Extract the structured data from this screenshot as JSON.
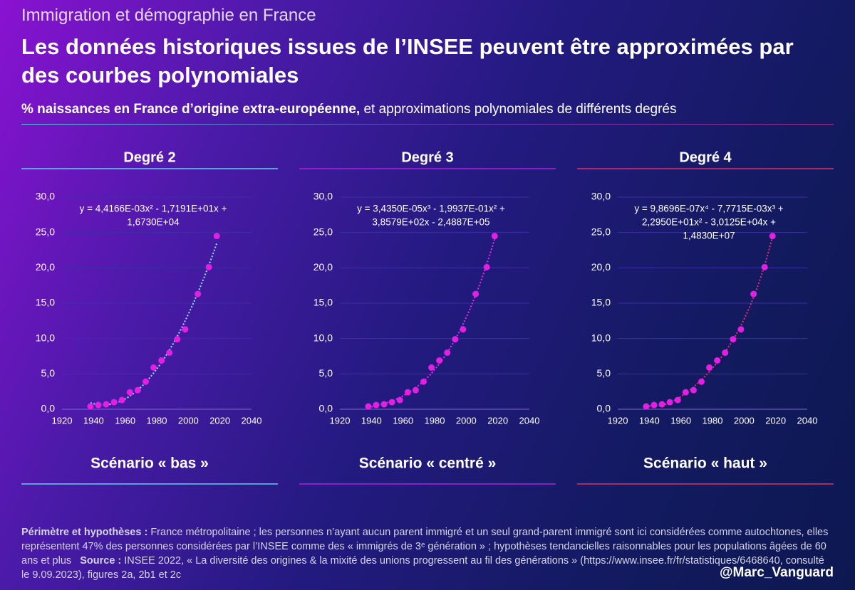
{
  "header": {
    "kicker": "Immigration et démographie en France",
    "title": "Les données historiques issues de l’INSEE peuvent être approximées par des courbes polynomiales",
    "subtitle_bold": "% naissances en France d’origine extra-européenne,",
    "subtitle_rest": "et approximations polynomiales de différents degrés"
  },
  "chart_data": [
    {
      "type": "scatter",
      "title": "Degré 2",
      "scenario": "Scénario « bas »",
      "equation": [
        "y = 4,4166E-03x² - 1,7191E+01x +",
        "1,6730E+04"
      ],
      "trendline_degree": 2,
      "trendline_color": "#8fe6f5",
      "underline_color": "#5fd0ea",
      "x": [
        1938,
        1943,
        1948,
        1953,
        1958,
        1963,
        1968,
        1973,
        1978,
        1983,
        1988,
        1993,
        1998,
        2006,
        2013,
        2018
      ],
      "values": [
        0.4,
        0.6,
        0.7,
        1.0,
        1.3,
        2.4,
        2.7,
        3.9,
        5.9,
        6.9,
        8.0,
        9.9,
        11.3,
        16.3,
        20.1,
        24.5
      ],
      "color": "#e41fe4",
      "grid": true,
      "xlim": [
        1920,
        2040
      ],
      "xticks": [
        1920,
        1940,
        1960,
        1980,
        2000,
        2020,
        2040
      ],
      "ylim": [
        0,
        30
      ],
      "yticks": [
        {
          "value": 0,
          "label": "0,0"
        },
        {
          "value": 5,
          "label": "5,0"
        },
        {
          "value": 10,
          "label": "10,0"
        },
        {
          "value": 15,
          "label": "15,0"
        },
        {
          "value": 20,
          "label": "20,0"
        },
        {
          "value": 25,
          "label": "25,0"
        },
        {
          "value": 30,
          "label": "30,0"
        }
      ]
    },
    {
      "type": "scatter",
      "title": "Degré 3",
      "scenario": "Scénario « centré »",
      "equation": [
        "y = 3,4350E-05x³ - 1,9937E-01x² +",
        "3,8579E+02x - 2,4887E+05"
      ],
      "trendline_degree": 3,
      "trendline_color": "#e030e0",
      "underline_color": "#b020e0",
      "x": [
        1938,
        1943,
        1948,
        1953,
        1958,
        1963,
        1968,
        1973,
        1978,
        1983,
        1988,
        1993,
        1998,
        2006,
        2013,
        2018
      ],
      "values": [
        0.4,
        0.6,
        0.7,
        1.0,
        1.3,
        2.4,
        2.7,
        3.9,
        5.9,
        6.9,
        8.0,
        9.9,
        11.3,
        16.3,
        20.1,
        24.5
      ],
      "color": "#e41fe4",
      "grid": true,
      "xlim": [
        1920,
        2040
      ],
      "xticks": [
        1920,
        1940,
        1960,
        1980,
        2000,
        2020,
        2040
      ],
      "ylim": [
        0,
        30
      ],
      "yticks": [
        {
          "value": 0,
          "label": "0,0"
        },
        {
          "value": 5,
          "label": "5,0"
        },
        {
          "value": 10,
          "label": "10,0"
        },
        {
          "value": 15,
          "label": "15,0"
        },
        {
          "value": 20,
          "label": "20,0"
        },
        {
          "value": 25,
          "label": "25,0"
        },
        {
          "value": 30,
          "label": "30,0"
        }
      ]
    },
    {
      "type": "scatter",
      "title": "Degré 4",
      "scenario": "Scénario « haut »",
      "equation": [
        "y = 9,8696E-07x⁴ - 7,7715E-03x³ +",
        "2,2950E+01x² - 3,0125E+04x +",
        "1,4830E+07"
      ],
      "trendline_degree": 4,
      "trendline_color": "#e8306e",
      "underline_color": "#e0306a",
      "x": [
        1938,
        1943,
        1948,
        1953,
        1958,
        1963,
        1968,
        1973,
        1978,
        1983,
        1988,
        1993,
        1998,
        2006,
        2013,
        2018
      ],
      "values": [
        0.4,
        0.6,
        0.7,
        1.0,
        1.3,
        2.4,
        2.7,
        3.9,
        5.9,
        6.9,
        8.0,
        9.9,
        11.3,
        16.3,
        20.1,
        24.5
      ],
      "color": "#e41fe4",
      "grid": true,
      "xlim": [
        1920,
        2040
      ],
      "xticks": [
        1920,
        1940,
        1960,
        1980,
        2000,
        2020,
        2040
      ],
      "ylim": [
        0,
        30
      ],
      "yticks": [
        {
          "value": 0,
          "label": "0,0"
        },
        {
          "value": 5,
          "label": "5,0"
        },
        {
          "value": 10,
          "label": "10,0"
        },
        {
          "value": 15,
          "label": "15,0"
        },
        {
          "value": 20,
          "label": "20,0"
        },
        {
          "value": 25,
          "label": "25,0"
        },
        {
          "value": 30,
          "label": "30,0"
        }
      ]
    }
  ],
  "footer": {
    "label": "Périmètre et hypothèses :",
    "text": "France métropolitaine ; les personnes n’ayant aucun parent immigré et un seul grand-parent immigré sont ici considérées comme autochtones, elles représentent 47% des personnes considérées par l’INSEE comme des « immigrés de 3ᵉ génération » ; hypothèses tendancielles raisonnables pour les populations âgées de 60 ans et plus",
    "source_label": "Source :",
    "source": "INSEE 2022, « La diversité des origines & la mixité des unions progressent au fil des générations » (https://www.insee.fr/fr/statistiques/6468640, consulté le 9.09.2023), figures 2a, 2b1 et 2c",
    "handle": "@Marc_Vanguard"
  }
}
